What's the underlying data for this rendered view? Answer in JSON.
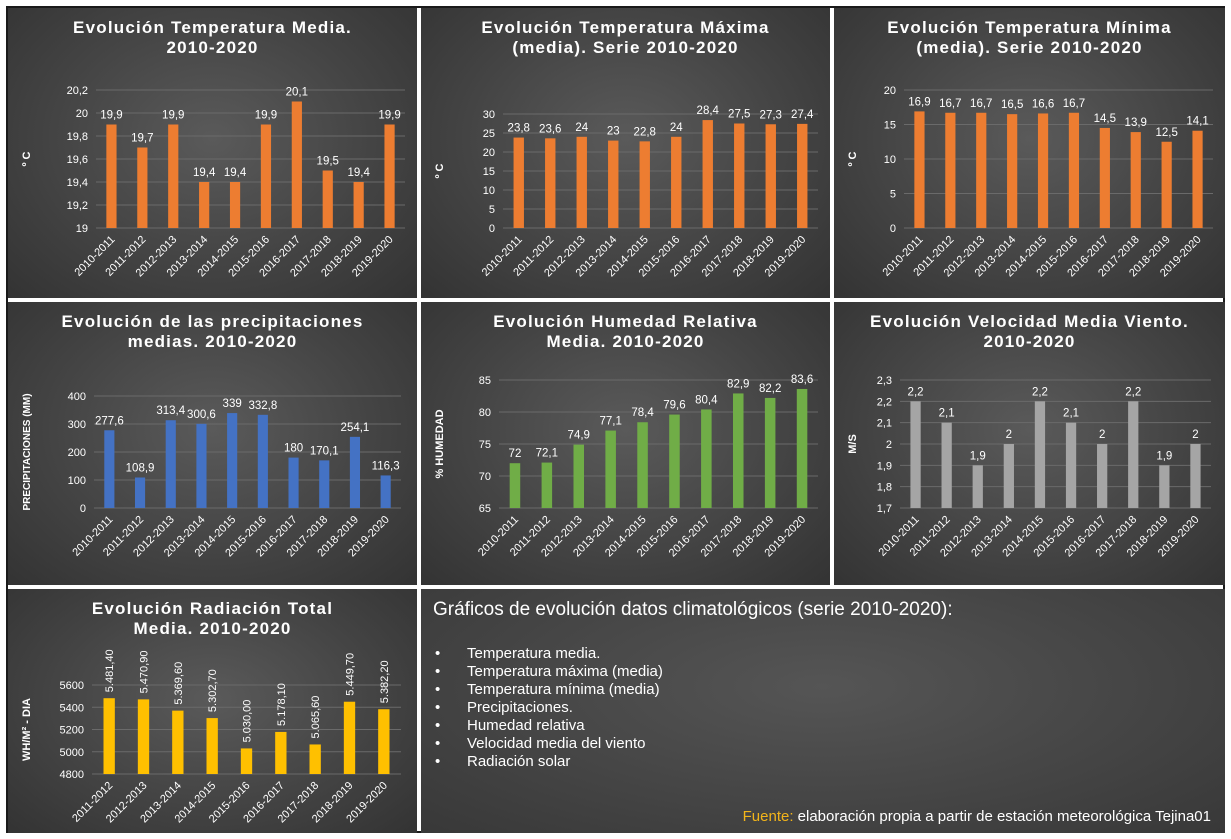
{
  "summary": {
    "heading": "Gráficos de evolución datos climatológicos (serie 2010-2020):",
    "items": [
      "Temperatura media.",
      "Temperatura máxima (media)",
      "Temperatura mínima (media)",
      "Precipitaciones.",
      "Humedad relativa",
      "Velocidad media del viento",
      "Radiación solar"
    ],
    "source_label": "Fuente:",
    "source_text": " elaboración propia a partir de estación meteorológica Tejina01"
  },
  "colors": {
    "orange": "#ed7d31",
    "blue": "#4472c4",
    "green": "#70ad47",
    "gray": "#a5a5a5",
    "gold": "#ffc000",
    "panel_bg": "#444444",
    "source_accent": "#f2b41a"
  },
  "chart_data": [
    {
      "type": "bar",
      "title": "Evolución Temperatura Media. 2010-2020",
      "ylabel": "º C",
      "categories": [
        "2010-2011",
        "2011-2012",
        "2012-2013",
        "2013-2014",
        "2014-2015",
        "2015-2016",
        "2016-2017",
        "2017-2018",
        "2018-2019",
        "2019-2020"
      ],
      "values": [
        19.9,
        19.7,
        19.9,
        19.4,
        19.4,
        19.9,
        20.1,
        19.5,
        19.4,
        19.9
      ],
      "labels": [
        "19,9",
        "19,7",
        "19,9",
        "19,4",
        "19,4",
        "19,9",
        "20,1",
        "19,5",
        "19,4",
        "19,9"
      ],
      "ylim": [
        19,
        20.2
      ],
      "yticks": [
        19,
        19.2,
        19.4,
        19.6,
        19.8,
        20,
        20.2
      ],
      "ytick_labels": [
        "19",
        "19,2",
        "19,4",
        "19,6",
        "19,8",
        "20",
        "20,2"
      ],
      "color": "#ed7d31",
      "grid": true
    },
    {
      "type": "bar",
      "title": "Evolución Temperatura Máxima (media). Serie 2010-2020",
      "ylabel": "º C",
      "categories": [
        "2010-2011",
        "2011-2012",
        "2012-2013",
        "2013-2014",
        "2014-2015",
        "2015-2016",
        "2016-2017",
        "2017-2018",
        "2018-2019",
        "2019-2020"
      ],
      "values": [
        23.8,
        23.6,
        24,
        23,
        22.8,
        24,
        28.4,
        27.5,
        27.3,
        27.4
      ],
      "labels": [
        "23,8",
        "23,6",
        "24",
        "23",
        "22,8",
        "24",
        "28,4",
        "27,5",
        "27,3",
        "27,4"
      ],
      "ylim": [
        0,
        30
      ],
      "yticks": [
        0,
        5,
        10,
        15,
        20,
        25,
        30
      ],
      "ytick_labels": [
        "0",
        "5",
        "10",
        "15",
        "20",
        "25",
        "30"
      ],
      "color": "#ed7d31",
      "grid": true
    },
    {
      "type": "bar",
      "title": "Evolución Temperatura Mínima (media). Serie 2010-2020",
      "ylabel": "º C",
      "categories": [
        "2010-2011",
        "2011-2012",
        "2012-2013",
        "2013-2014",
        "2014-2015",
        "2015-2016",
        "2016-2017",
        "2017-2018",
        "2018-2019",
        "2019-2020"
      ],
      "values": [
        16.9,
        16.7,
        16.7,
        16.5,
        16.6,
        16.7,
        14.5,
        13.9,
        12.5,
        14.1
      ],
      "labels": [
        "16,9",
        "16,7",
        "16,7",
        "16,5",
        "16,6",
        "16,7",
        "14,5",
        "13,9",
        "12,5",
        "14,1"
      ],
      "ylim": [
        0,
        20
      ],
      "yticks": [
        0,
        5,
        10,
        15,
        20
      ],
      "ytick_labels": [
        "0",
        "5",
        "10",
        "15",
        "20"
      ],
      "color": "#ed7d31",
      "grid": true
    },
    {
      "type": "bar",
      "title": "Evolución de las precipitaciones medias. 2010-2020",
      "ylabel": "PRECIPITACIONES (MM)",
      "categories": [
        "2010-2011",
        "2011-2012",
        "2012-2013",
        "2013-2014",
        "2014-2015",
        "2015-2016",
        "2016-2017",
        "2017-2018",
        "2018-2019",
        "2019-2020"
      ],
      "values": [
        277.6,
        108.9,
        313.4,
        300.6,
        339,
        332.8,
        180,
        170.1,
        254.1,
        116.3
      ],
      "labels": [
        "277,6",
        "108,9",
        "313,4",
        "300,6",
        "339",
        "332,8",
        "180",
        "170,1",
        "254,1",
        "116,3"
      ],
      "ylim": [
        0,
        400
      ],
      "yticks": [
        0,
        100,
        200,
        300,
        400
      ],
      "ytick_labels": [
        "0",
        "100",
        "200",
        "300",
        "400"
      ],
      "color": "#4472c4",
      "grid": true
    },
    {
      "type": "bar",
      "title": "Evolución Humedad Relativa Media. 2010-2020",
      "ylabel": "% HUMEDAD",
      "categories": [
        "2010-2011",
        "2011-2012",
        "2012-2013",
        "2013-2014",
        "2014-2015",
        "2015-2016",
        "2016-2017",
        "2017-2018",
        "2018-2019",
        "2019-2020"
      ],
      "values": [
        72,
        72.1,
        74.9,
        77.1,
        78.4,
        79.6,
        80.4,
        82.9,
        82.2,
        83.6
      ],
      "labels": [
        "72",
        "72,1",
        "74,9",
        "77,1",
        "78,4",
        "79,6",
        "80,4",
        "82,9",
        "82,2",
        "83,6"
      ],
      "ylim": [
        65,
        85
      ],
      "yticks": [
        65,
        70,
        75,
        80,
        85
      ],
      "ytick_labels": [
        "65",
        "70",
        "75",
        "80",
        "85"
      ],
      "color": "#70ad47",
      "grid": true
    },
    {
      "type": "bar",
      "title": "Evolución Velocidad Media Viento. 2010-2020",
      "ylabel": "M/S",
      "categories": [
        "2010-2011",
        "2011-2012",
        "2012-2013",
        "2013-2014",
        "2014-2015",
        "2015-2016",
        "2016-2017",
        "2017-2018",
        "2018-2019",
        "2019-2020"
      ],
      "values": [
        2.2,
        2.1,
        1.9,
        2,
        2.2,
        2.1,
        2,
        2.2,
        1.9,
        2
      ],
      "labels": [
        "2,2",
        "2,1",
        "1,9",
        "2",
        "2,2",
        "2,1",
        "2",
        "2,2",
        "1,9",
        "2"
      ],
      "ylim": [
        1.7,
        2.3
      ],
      "yticks": [
        1.7,
        1.8,
        1.9,
        2.0,
        2.1,
        2.2,
        2.3
      ],
      "ytick_labels": [
        "1,7",
        "1,8",
        "1,9",
        "2",
        "2,1",
        "2,2",
        "2,3"
      ],
      "color": "#a5a5a5",
      "grid": true
    },
    {
      "type": "bar",
      "title": "Evolución Radiación Total Media. 2010-2020",
      "ylabel": "WH/M² - DIA",
      "categories": [
        "2011-2012",
        "2012-2013",
        "2013-2014",
        "2014-2015",
        "2015-2016",
        "2016-2017",
        "2017-2018",
        "2018-2019",
        "2019-2020"
      ],
      "values": [
        5481.4,
        5470.9,
        5369.6,
        5302.7,
        5030,
        5178.1,
        5065.6,
        5449.7,
        5382.2
      ],
      "labels": [
        "5.481,40",
        "5.470,90",
        "5.369,60",
        "5.302,70",
        "5.030,00",
        "5.178,10",
        "5.065,60",
        "5.449,70",
        "5.382,20"
      ],
      "ylim": [
        4800,
        5600
      ],
      "yticks": [
        4800,
        5000,
        5200,
        5400,
        5600
      ],
      "ytick_labels": [
        "4800",
        "5000",
        "5200",
        "5400",
        "5600"
      ],
      "color": "#ffc000",
      "grid": true,
      "label_rotation": "vertical"
    }
  ]
}
